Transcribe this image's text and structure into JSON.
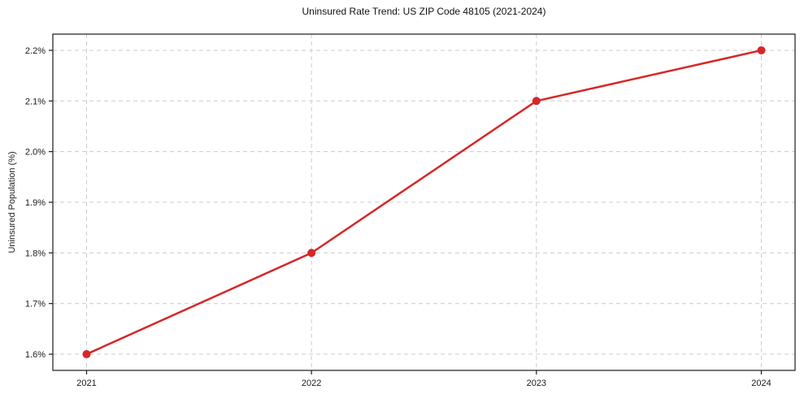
{
  "chart_data": {
    "type": "line",
    "title": "Uninsured Rate Trend: US ZIP Code 48105 (2021-2024)",
    "xlabel": "",
    "ylabel": "Uninsured Population (%)",
    "x": [
      2021,
      2022,
      2023,
      2024
    ],
    "values": [
      1.6,
      1.8,
      2.1,
      2.2
    ],
    "x_ticks": [
      {
        "value": 2021,
        "label": "2021"
      },
      {
        "value": 2022,
        "label": "2022"
      },
      {
        "value": 2023,
        "label": "2023"
      },
      {
        "value": 2024,
        "label": "2024"
      }
    ],
    "y_ticks": [
      {
        "value": 1.6,
        "label": "1.6%"
      },
      {
        "value": 1.7,
        "label": "1.7%"
      },
      {
        "value": 1.8,
        "label": "1.8%"
      },
      {
        "value": 1.9,
        "label": "1.9%"
      },
      {
        "value": 2.0,
        "label": "2.0%"
      },
      {
        "value": 2.1,
        "label": "2.1%"
      },
      {
        "value": 2.2,
        "label": "2.2%"
      }
    ],
    "xlim": [
      2020.85,
      2024.15
    ],
    "ylim": [
      1.568,
      2.232
    ],
    "grid": true,
    "legend": "none",
    "line_color": "#d62728",
    "marker_color": "#d62728",
    "grid_color": "#cccccc",
    "spine_color": "#1a1a1a",
    "tick_text_color": "#1a1a1a",
    "background_color": "#ffffff"
  }
}
